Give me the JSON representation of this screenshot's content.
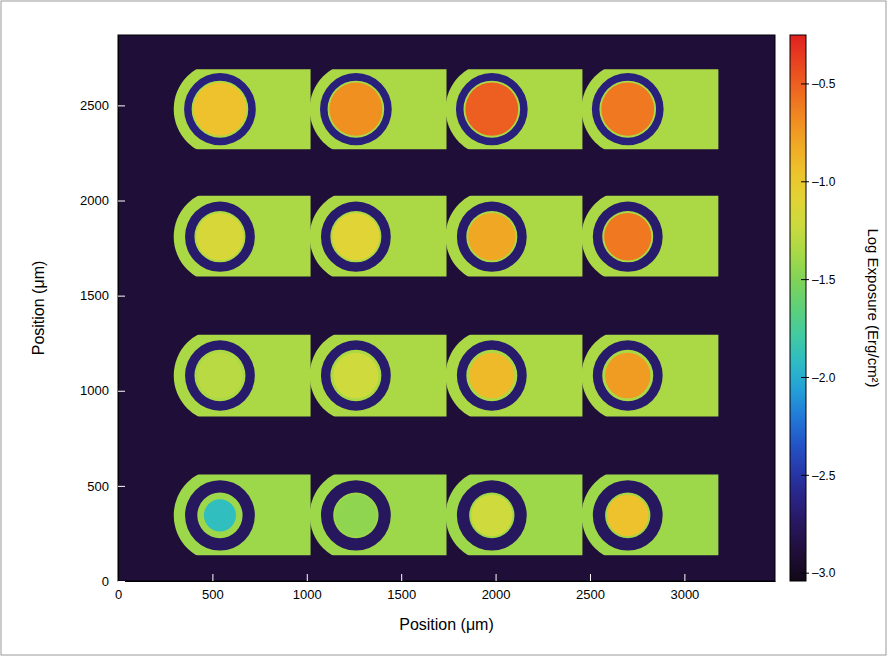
{
  "chart_data": {
    "type": "heatmap",
    "xlabel": "Position (μm)",
    "ylabel": "Position (μm)",
    "xlim": [
      0,
      3480
    ],
    "ylim": [
      0,
      2870
    ],
    "xticks": [
      0,
      500,
      1000,
      1500,
      2000,
      2500,
      3000
    ],
    "yticks": [
      0,
      500,
      1000,
      1500,
      2000,
      2500
    ],
    "background": -2.9,
    "colorbar": {
      "label": "Log Exposure (Erg/cm²)",
      "range": [
        -3.04,
        -0.25
      ],
      "ticks": [
        {
          "value": -0.5,
          "label": "–0.5"
        },
        {
          "value": -1.0,
          "label": "–1.0"
        },
        {
          "value": -1.5,
          "label": "–1.5"
        },
        {
          "value": -2.0,
          "label": "–2.0"
        },
        {
          "value": -2.5,
          "label": "–2.5"
        },
        {
          "value": -3.0,
          "label": "–3.0"
        }
      ]
    },
    "rows": [
      {
        "band": [
          2270,
          2690
        ],
        "patterns": [
          {
            "center": [
              540,
              2480
            ],
            "right": 1020,
            "outer_radius": 245,
            "ring_radii": [
              150,
              190
            ],
            "disk_radius": 140,
            "outer_value": -1.35,
            "ring_value": -2.65,
            "disk_value": -0.95
          },
          {
            "center": [
              1260,
              2480
            ],
            "right": 1740,
            "outer_radius": 245,
            "ring_radii": [
              150,
              190
            ],
            "disk_radius": 140,
            "outer_value": -1.35,
            "ring_value": -2.65,
            "disk_value": -0.7
          },
          {
            "center": [
              1980,
              2480
            ],
            "right": 2460,
            "outer_radius": 245,
            "ring_radii": [
              150,
              190
            ],
            "disk_radius": 140,
            "outer_value": -1.35,
            "ring_value": -2.65,
            "disk_value": -0.5
          },
          {
            "center": [
              2700,
              2480
            ],
            "right": 3180,
            "outer_radius": 245,
            "ring_radii": [
              150,
              190
            ],
            "disk_radius": 140,
            "outer_value": -1.35,
            "ring_value": -2.65,
            "disk_value": -0.6
          }
        ]
      },
      {
        "band": [
          1600,
          2025
        ],
        "patterns": [
          {
            "center": [
              540,
              1810
            ],
            "right": 1020,
            "outer_radius": 245,
            "ring_radii": [
              135,
              185
            ],
            "disk_radius": 125,
            "outer_value": -1.35,
            "ring_value": -2.7,
            "disk_value": -1.15
          },
          {
            "center": [
              1260,
              1810
            ],
            "right": 1740,
            "outer_radius": 245,
            "ring_radii": [
              135,
              185
            ],
            "disk_radius": 125,
            "outer_value": -1.35,
            "ring_value": -2.7,
            "disk_value": -1.1
          },
          {
            "center": [
              1980,
              1810
            ],
            "right": 2460,
            "outer_radius": 245,
            "ring_radii": [
              135,
              185
            ],
            "disk_radius": 125,
            "outer_value": -1.35,
            "ring_value": -2.7,
            "disk_value": -0.8
          },
          {
            "center": [
              2700,
              1810
            ],
            "right": 3180,
            "outer_radius": 245,
            "ring_radii": [
              135,
              185
            ],
            "disk_radius": 125,
            "outer_value": -1.35,
            "ring_value": -2.7,
            "disk_value": -0.6
          }
        ]
      },
      {
        "band": [
          865,
          1295
        ],
        "patterns": [
          {
            "center": [
              540,
              1080
            ],
            "right": 1020,
            "outer_radius": 245,
            "ring_radii": [
              135,
              185
            ],
            "disk_radius": 120,
            "outer_value": -1.35,
            "ring_value": -2.7,
            "disk_value": -1.3
          },
          {
            "center": [
              1260,
              1080
            ],
            "right": 1740,
            "outer_radius": 245,
            "ring_radii": [
              135,
              185
            ],
            "disk_radius": 120,
            "outer_value": -1.35,
            "ring_value": -2.7,
            "disk_value": -1.2
          },
          {
            "center": [
              1980,
              1080
            ],
            "right": 2460,
            "outer_radius": 245,
            "ring_radii": [
              135,
              185
            ],
            "disk_radius": 120,
            "outer_value": -1.35,
            "ring_value": -2.7,
            "disk_value": -0.9
          },
          {
            "center": [
              2700,
              1080
            ],
            "right": 3180,
            "outer_radius": 245,
            "ring_radii": [
              135,
              185
            ],
            "disk_radius": 120,
            "outer_value": -1.35,
            "ring_value": -2.7,
            "disk_value": -0.75
          }
        ]
      },
      {
        "band": [
          135,
          560
        ],
        "patterns": [
          {
            "center": [
              540,
              345
            ],
            "right": 1020,
            "outer_radius": 245,
            "ring_radii": [
              120,
              185
            ],
            "disk_radius": 85,
            "outer_value": -1.4,
            "ring_value": -2.75,
            "disk_value": -1.9
          },
          {
            "center": [
              1260,
              345
            ],
            "right": 1740,
            "outer_radius": 245,
            "ring_radii": [
              120,
              185
            ],
            "disk_radius": 110,
            "outer_value": -1.4,
            "ring_value": -2.75,
            "disk_value": -1.45
          },
          {
            "center": [
              1980,
              345
            ],
            "right": 2460,
            "outer_radius": 245,
            "ring_radii": [
              120,
              185
            ],
            "disk_radius": 110,
            "outer_value": -1.4,
            "ring_value": -2.75,
            "disk_value": -1.2
          },
          {
            "center": [
              2700,
              345
            ],
            "right": 3180,
            "outer_radius": 245,
            "ring_radii": [
              120,
              185
            ],
            "disk_radius": 110,
            "outer_value": -1.4,
            "ring_value": -2.75,
            "disk_value": -0.95
          }
        ]
      }
    ]
  }
}
